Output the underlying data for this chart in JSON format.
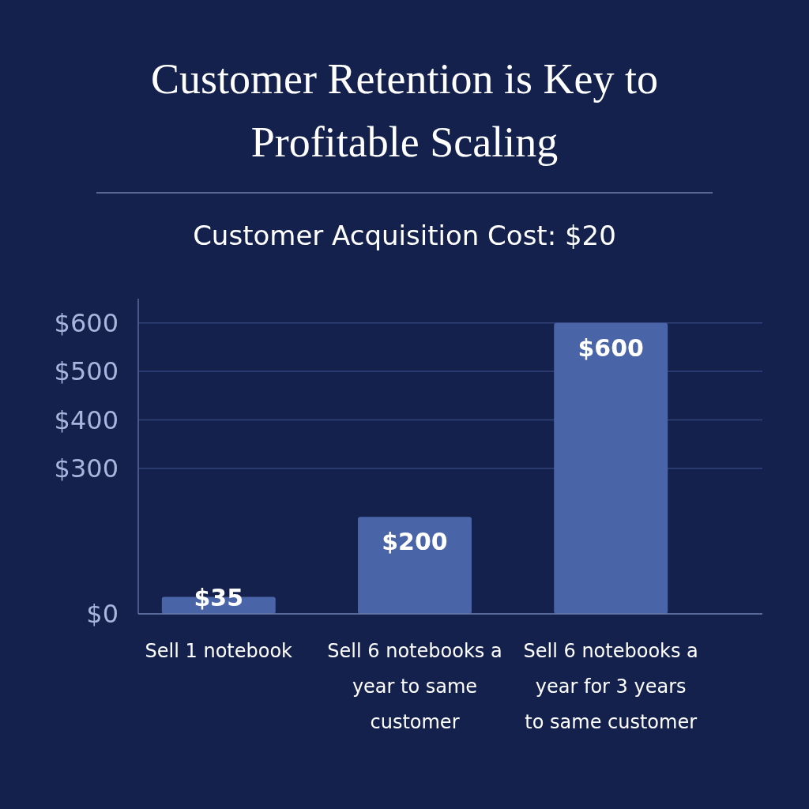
{
  "chart_data": {
    "type": "bar",
    "title": "Customer Retention is Key to Profitable Scaling",
    "subtitle": "Customer Acquisition Cost: $20",
    "categories": [
      "Sell 1 notebook",
      "Sell 6 notebooks a year to same customer",
      "Sell 6 notebooks a year for 3 years to same customer"
    ],
    "values": [
      35,
      200,
      600
    ],
    "value_labels": [
      "$35",
      "$200",
      "$600"
    ],
    "color": "#4a64a8",
    "ylim": [
      0,
      650
    ],
    "yticks": [
      {
        "value": 0,
        "label": "$0"
      },
      {
        "value": 300,
        "label": "$300"
      },
      {
        "value": 400,
        "label": "$400"
      },
      {
        "value": 500,
        "label": "$500"
      },
      {
        "value": 600,
        "label": "$600"
      }
    ],
    "grid": "y"
  }
}
